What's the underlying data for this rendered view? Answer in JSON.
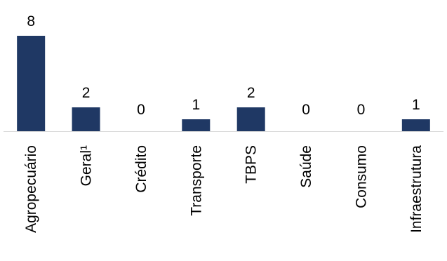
{
  "chart_data": {
    "type": "bar",
    "categories": [
      "Agropecuário",
      "Geral¹",
      "Crédito",
      "Transporte",
      "TBPS",
      "Saúde",
      "Consumo",
      "Infraestrutura"
    ],
    "values": [
      8,
      2,
      0,
      1,
      2,
      0,
      0,
      1
    ],
    "data_labels": [
      "8",
      "2",
      "0",
      "1",
      "2",
      "0",
      "0",
      "1"
    ],
    "title": "",
    "xlabel": "",
    "ylabel": "",
    "ylim": [
      0,
      8
    ],
    "grid": false,
    "legend": "none",
    "colors": {
      "bar": "#1f3864",
      "axis": "#d9d9d9",
      "text": "#000000"
    }
  }
}
